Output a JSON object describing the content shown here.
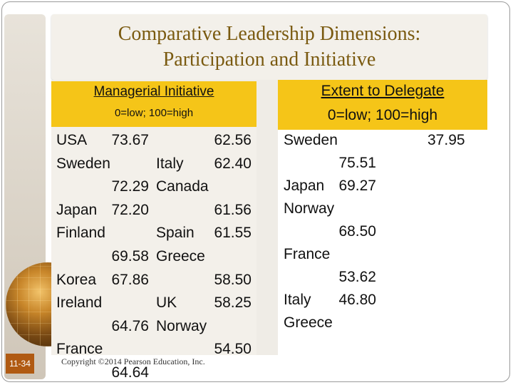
{
  "title": {
    "line1": "Comparative Leadership Dimensions:",
    "line2": "Participation and Initiative"
  },
  "left": {
    "heading": "Managerial Initiative",
    "scale": "0=low; 100=high",
    "col1": [
      {
        "country": "USA",
        "value": "73.67"
      },
      {
        "country": "Sweden",
        "value": "72.29"
      },
      {
        "country": "Japan",
        "value": "72.20"
      },
      {
        "country": "Finland",
        "value": "69.58"
      },
      {
        "country": "Korea",
        "value": "67.86"
      },
      {
        "country": "Ireland",
        "value": "64.76"
      },
      {
        "country": "France",
        "value": "64.64"
      }
    ],
    "col2": [
      {
        "country": "",
        "value": "62.56"
      },
      {
        "country": "Italy",
        "value": "62.40"
      },
      {
        "country": "Canada",
        "value": "61.56"
      },
      {
        "country": "Spain",
        "value": "61.55"
      },
      {
        "country": "Greece",
        "value": "58.50"
      },
      {
        "country": "UK",
        "value": "58.25"
      },
      {
        "country": "Norway",
        "value": "54.50"
      }
    ]
  },
  "right": {
    "heading": "Extent to Delegate",
    "scale": "0=low; 100=high",
    "first_value": "37.95",
    "items": [
      {
        "country": "Sweden",
        "value": "75.51"
      },
      {
        "country": "Japan",
        "value": "69.27"
      },
      {
        "country": "Norway",
        "value": "68.50"
      },
      {
        "country": "France",
        "value": "53.62"
      },
      {
        "country": "Italy",
        "value": "46.80"
      },
      {
        "country": "Greece",
        "value": ""
      }
    ]
  },
  "footer": {
    "slide_number": "11-34",
    "copyright": "Copyright ©2014 Pearson Education, Inc."
  },
  "colors": {
    "accent": "#f5c518",
    "title_text": "#7a5a10",
    "slide_number_bg": "#b05a12"
  }
}
